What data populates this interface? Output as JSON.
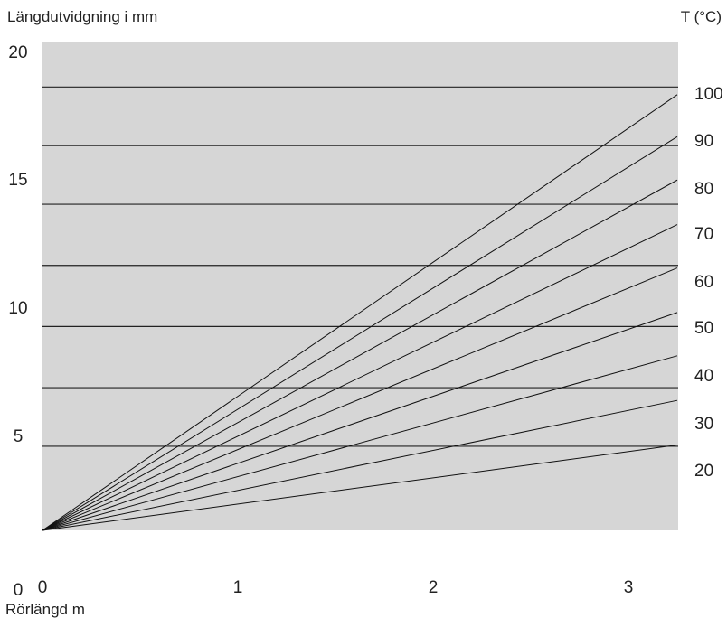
{
  "chart_data": {
    "type": "line",
    "ylabel": "Längdutvidgning i mm",
    "xlabel": "Rörlängd m",
    "series_label_title": "T (°C)",
    "xlim": [
      0,
      3.25
    ],
    "ylim": [
      -2,
      20
    ],
    "x_ticks": [
      "0",
      "1",
      "2",
      "3"
    ],
    "y_ticks": [
      "0",
      "5",
      "10",
      "15",
      "20"
    ],
    "gridlines_y": [
      3.3,
      5.6,
      8.0,
      10.4,
      12.8,
      15.1,
      17.4
    ],
    "series": [
      {
        "name": "20",
        "x": [
          0,
          3.25
        ],
        "y": [
          0,
          3.35
        ]
      },
      {
        "name": "30",
        "x": [
          0,
          3.25
        ],
        "y": [
          0,
          5.1
        ]
      },
      {
        "name": "40",
        "x": [
          0,
          3.25
        ],
        "y": [
          0,
          6.85
        ]
      },
      {
        "name": "50",
        "x": [
          0,
          3.25
        ],
        "y": [
          0,
          8.55
        ]
      },
      {
        "name": "60",
        "x": [
          0,
          3.25
        ],
        "y": [
          0,
          10.3
        ]
      },
      {
        "name": "70",
        "x": [
          0,
          3.25
        ],
        "y": [
          0,
          12.0
        ]
      },
      {
        "name": "80",
        "x": [
          0,
          3.25
        ],
        "y": [
          0,
          13.75
        ]
      },
      {
        "name": "90",
        "x": [
          0,
          3.25
        ],
        "y": [
          0,
          15.45
        ]
      },
      {
        "name": "100",
        "x": [
          0,
          3.25
        ],
        "y": [
          0,
          17.1
        ]
      }
    ],
    "grid": true,
    "legend": "right",
    "colors": {
      "plot_background": "#d6d6d6",
      "lines": "#111111",
      "gridlines": "#222222"
    }
  }
}
